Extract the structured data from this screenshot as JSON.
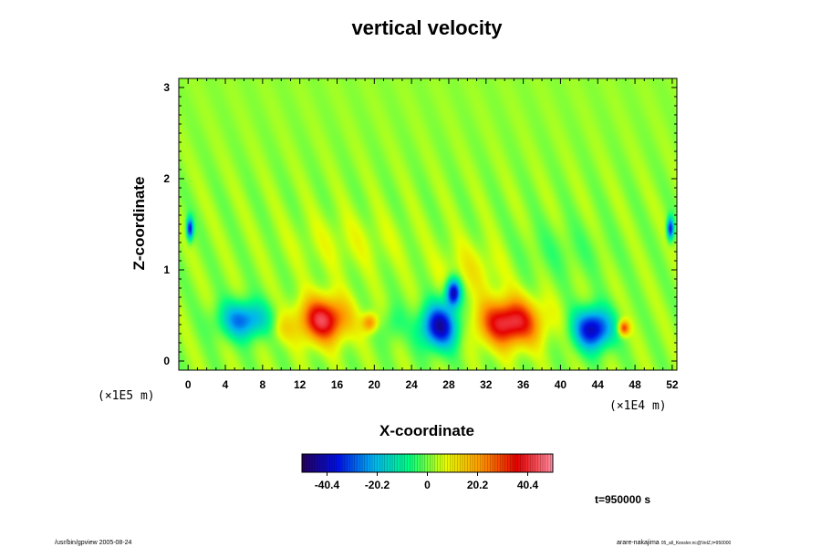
{
  "chart_data": {
    "type": "heatmap",
    "title": "vertical velocity",
    "xlabel": "X-coordinate",
    "ylabel": "Z-coordinate",
    "x_scale_label": "(×1E4 m)",
    "y_scale_label": "(×1E5 m)",
    "xlim": [
      -1,
      52.5
    ],
    "ylim": [
      -0.1,
      3.1
    ],
    "x_ticks": [
      0,
      4,
      8,
      12,
      16,
      20,
      24,
      28,
      32,
      36,
      40,
      44,
      48,
      52
    ],
    "y_ticks": [
      0,
      1,
      2,
      3
    ],
    "colorbar": {
      "range": [
        -50.5,
        50.5
      ],
      "ticks": [
        -40.4,
        -20.2,
        0,
        20.2,
        40.4
      ],
      "colors": [
        "#24005a",
        "#0010e6",
        "#00b4f0",
        "#00ff80",
        "#e6ff00",
        "#ff9600",
        "#e60000",
        "#ff8ca0"
      ]
    },
    "background_value": 2,
    "features": [
      {
        "x": 6,
        "z": 0.45,
        "sx": 2.6,
        "sz": 0.2,
        "value": -30
      },
      {
        "x": 14.5,
        "z": 0.45,
        "sx": 2.6,
        "sz": 0.24,
        "value": 40
      },
      {
        "x": 27,
        "z": 0.38,
        "sx": 2.0,
        "sz": 0.24,
        "value": -44
      },
      {
        "x": 28.5,
        "z": 0.75,
        "sx": 0.8,
        "sz": 0.15,
        "value": -45
      },
      {
        "x": 34.5,
        "z": 0.42,
        "sx": 3.2,
        "sz": 0.25,
        "value": 42
      },
      {
        "x": 43.5,
        "z": 0.35,
        "sx": 2.0,
        "sz": 0.22,
        "value": -44
      },
      {
        "x": 0.2,
        "z": 1.45,
        "sx": 0.35,
        "sz": 0.12,
        "value": -40
      },
      {
        "x": 51.8,
        "z": 1.45,
        "sx": 0.35,
        "sz": 0.12,
        "value": -40
      },
      {
        "x": 46.8,
        "z": 0.36,
        "sx": 0.6,
        "sz": 0.08,
        "value": 30
      },
      {
        "x": 19.5,
        "z": 0.42,
        "sx": 0.8,
        "sz": 0.1,
        "value": 22
      },
      {
        "x": 10,
        "z": 0.35,
        "sx": 1.2,
        "sz": 0.15,
        "value": 8
      },
      {
        "x": 22,
        "z": 0.4,
        "sx": 1.2,
        "sz": 0.2,
        "value": -8
      },
      {
        "x": 30.5,
        "z": 1.0,
        "sx": 3.5,
        "sz": 0.3,
        "value": 7
      },
      {
        "x": 17,
        "z": 1.3,
        "sx": 6,
        "sz": 0.3,
        "value": 4
      },
      {
        "x": 40,
        "z": 1.2,
        "sx": 5,
        "sz": 0.3,
        "value": -4
      }
    ],
    "time_label": "t=950000 s"
  },
  "footer": {
    "left": "/usr/bin/gpview 2005-08-24",
    "right_main": "arare-nakajima",
    "right_small": "05_all_Kessler.nc@VelZ,t=950000"
  }
}
